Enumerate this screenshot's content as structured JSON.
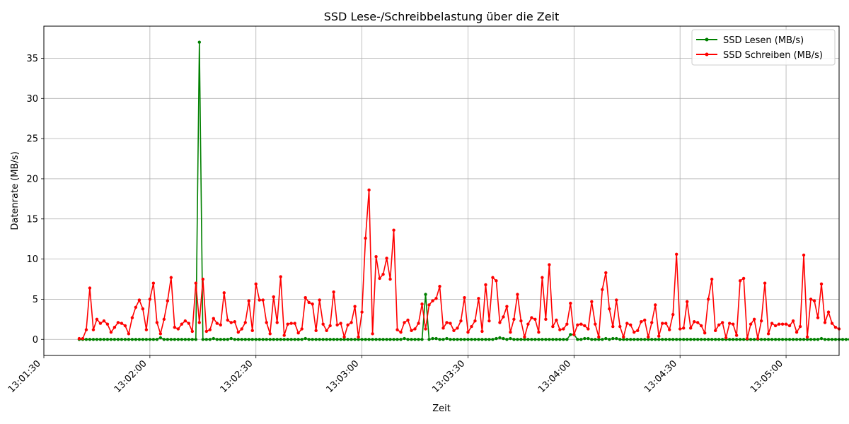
{
  "chart_data": {
    "type": "line",
    "title": "SSD Lese-/Schreibbelastung über die Zeit",
    "xlabel": "Zeit",
    "ylabel": "Datenrate (MB/s)",
    "x_start": "13:01:40",
    "x_step_seconds": 1,
    "xlim": [
      "13:01:30",
      "13:05:15"
    ],
    "xticks": [
      "13:01:30",
      "13:02:00",
      "13:02:30",
      "13:03:00",
      "13:03:30",
      "13:04:00",
      "13:04:30",
      "13:05:00"
    ],
    "ylim": [
      -2,
      39
    ],
    "yticks": [
      0,
      5,
      10,
      15,
      20,
      25,
      30,
      35
    ],
    "grid": true,
    "legend_position": "top-right",
    "series": [
      {
        "name": "SSD Lesen (MB/s)",
        "color": "#008000",
        "values": [
          0,
          0,
          0,
          0,
          0,
          0,
          0,
          0,
          0,
          0,
          0,
          0,
          0,
          0,
          0,
          0,
          0,
          0,
          0,
          0,
          0,
          0,
          0,
          0.2,
          0,
          0,
          0,
          0,
          0,
          0,
          0,
          0,
          0,
          0,
          37,
          0,
          0,
          0,
          0.1,
          0,
          0,
          0,
          0,
          0.1,
          0,
          0,
          0,
          0,
          0,
          0,
          0,
          0,
          0,
          0,
          0,
          0,
          0,
          0,
          0,
          0,
          0,
          0,
          0,
          0,
          0.1,
          0,
          0,
          0,
          0,
          0,
          0,
          0,
          0,
          0,
          0,
          0,
          0,
          0,
          0,
          0,
          0,
          0,
          0,
          0,
          0,
          0,
          0,
          0,
          0,
          0,
          0,
          0,
          0.1,
          0,
          0,
          0,
          0,
          0,
          5.6,
          0,
          0.1,
          0.1,
          0,
          0,
          0.1,
          0,
          0,
          0,
          0,
          0,
          0,
          0,
          0,
          0,
          0,
          0,
          0,
          0,
          0.1,
          0.2,
          0.1,
          0,
          0.1,
          0,
          0,
          0,
          0,
          0,
          0,
          0,
          0,
          0,
          0,
          0,
          0,
          0,
          0,
          0,
          0,
          0.6,
          0.6,
          0,
          0,
          0.1,
          0.1,
          0,
          0,
          0,
          0,
          0.1,
          0,
          0.1,
          0.1,
          0,
          0,
          0,
          0,
          0,
          0,
          0,
          0,
          0,
          0,
          0,
          0,
          0,
          0,
          0,
          0,
          0,
          0,
          0,
          0,
          0,
          0,
          0,
          0,
          0,
          0,
          0,
          0,
          0,
          0,
          0,
          0,
          0,
          0,
          0,
          0,
          0,
          0,
          0,
          0,
          0,
          0,
          0,
          0,
          0,
          0,
          0,
          0,
          0,
          0,
          0,
          0,
          0,
          0,
          0,
          0,
          0,
          0.1,
          0,
          0,
          0,
          0,
          0,
          0,
          0,
          0,
          0,
          0,
          0,
          0,
          0,
          0,
          0,
          0,
          0,
          0,
          0,
          0,
          0.2,
          0,
          0,
          0,
          0,
          0,
          0,
          0,
          0,
          0,
          0,
          0,
          0,
          0,
          0,
          0,
          0,
          0,
          0,
          0,
          0,
          0,
          0
        ]
      },
      {
        "name": "SSD Schreiben (MB/s)",
        "color": "#ff0000",
        "values": [
          0.1,
          0.1,
          1.2,
          6.4,
          1.2,
          2.5,
          2,
          2.3,
          1.9,
          0.9,
          1.5,
          2.1,
          2,
          1.7,
          0.7,
          2.7,
          4,
          4.9,
          3.8,
          1.2,
          5,
          7,
          2.1,
          0.7,
          2.5,
          4.8,
          7.7,
          1.5,
          1.3,
          1.9,
          2.3,
          2,
          1,
          7,
          2.1,
          7.5,
          1,
          1.2,
          2.6,
          2,
          1.8,
          5.8,
          2.4,
          2.1,
          2.2,
          0.9,
          1.3,
          2.1,
          4.8,
          1.1,
          6.9,
          4.9,
          4.9,
          2.1,
          0.7,
          5.3,
          2.1,
          7.8,
          0.5,
          1.9,
          2,
          2,
          0.8,
          1.3,
          5.2,
          4.6,
          4.4,
          1.1,
          4.9,
          1.9,
          1.1,
          1.7,
          5.9,
          1.8,
          2,
          0.3,
          1.8,
          2.1,
          4.1,
          0.3,
          3.4,
          12.6,
          18.6,
          0.7,
          10.3,
          7.6,
          8.1,
          10.1,
          7.5,
          13.6,
          1.2,
          0.9,
          2.1,
          2.4,
          1.1,
          1.3,
          2,
          4.4,
          1.3,
          4.3,
          4.8,
          5.1,
          6.6,
          1.4,
          2.1,
          2,
          1.1,
          1.4,
          2.3,
          5.2,
          0.9,
          1.6,
          2.3,
          5.1,
          1,
          6.8,
          2.3,
          7.7,
          7.3,
          2.1,
          2.8,
          4.1,
          0.9,
          2.5,
          5.6,
          2.3,
          0.3,
          1.9,
          2.7,
          2.5,
          0.9,
          7.7,
          2.5,
          9.3,
          1.6,
          2.4,
          1.2,
          1.3,
          1.9,
          4.5,
          0.6,
          1.8,
          1.9,
          1.7,
          1.3,
          4.7,
          1.9,
          0.3,
          6.2,
          8.3,
          3.8,
          1.6,
          4.9,
          1.6,
          0.3,
          2,
          1.8,
          0.9,
          1.1,
          2.2,
          2.4,
          0.3,
          2.1,
          4.3,
          0.4,
          2,
          2,
          1.2,
          3.1,
          10.6,
          1.3,
          1.4,
          4.7,
          1.4,
          2.2,
          2.1,
          1.7,
          0.8,
          5,
          7.5,
          1.1,
          1.8,
          2.1,
          0.2,
          2,
          1.9,
          0.5,
          7.3,
          7.6,
          0.1,
          1.9,
          2.5,
          0.1,
          2.3,
          7,
          0.7,
          2,
          1.7,
          1.9,
          1.9,
          1.9,
          1.7,
          2.3,
          0.9,
          1.6,
          10.5,
          0.3,
          5,
          4.8,
          2.7,
          6.9,
          2.1,
          3.4,
          2,
          1.5,
          1.3
        ]
      }
    ]
  }
}
